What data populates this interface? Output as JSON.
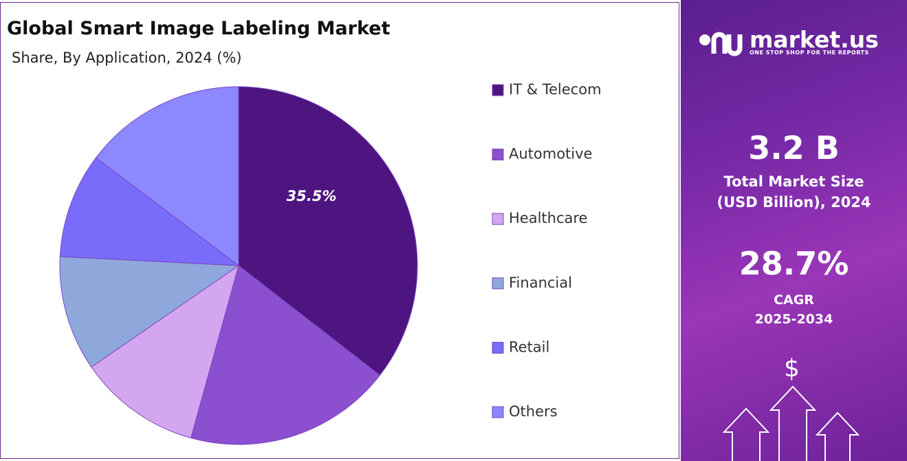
{
  "chart_data": {
    "type": "pie",
    "title": "Global Smart Image Labeling Market",
    "subtitle": "Share, By Application, 2024 (%)",
    "categories": [
      "IT & Telecom",
      "Automotive",
      "Healthcare",
      "Financial",
      "Retail",
      "Others"
    ],
    "values": [
      35.5,
      18.8,
      11.1,
      10.4,
      9.5,
      14.7
    ],
    "value_labels": [
      "35.5%",
      null,
      null,
      null,
      null,
      null
    ],
    "colors": [
      "#4e1581",
      "#8b4fd0",
      "#d4a6ef",
      "#8fa8dc",
      "#7a6cfa",
      "#8c88ff"
    ],
    "legend": "right"
  },
  "sidebar": {
    "logo": "market.us",
    "tagline": "ONE STOP SHOP FOR THE REPORTS",
    "market_size": "3.2 B",
    "market_size_label_1": "Total Market Size",
    "market_size_label_2": "(USD Billion), 2024",
    "cagr": "28.7%",
    "cagr_label": "CAGR",
    "cagr_period": "2025-2034",
    "icon": "$"
  }
}
